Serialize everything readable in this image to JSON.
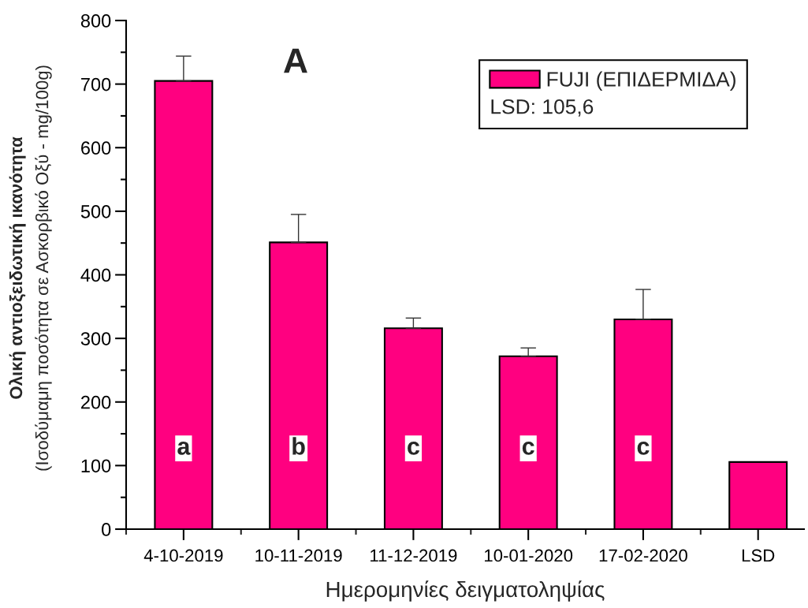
{
  "chart_data": {
    "type": "bar",
    "title": "A",
    "ylabel": "Ολική αντιοξειδωτική ικανότητα\n(Ισοδύμαμη ποσότητα σε Ασκορβικό Οξύ - mg/100g)",
    "xlabel": "Ημερομηνίες δειγματοληψίας",
    "categories": [
      "4-10-2019",
      "10-11-2019",
      "11-12-2019",
      "10-01-2020",
      "17-02-2020",
      "LSD"
    ],
    "series": [
      {
        "name": "FUJI (ΕΠΙΔΕΡΜΙΔΑ)",
        "color": "#ff0080",
        "values": [
          705,
          451,
          316,
          272,
          330,
          105.6
        ],
        "errors": [
          [
            705,
            744
          ],
          [
            451,
            495
          ],
          [
            316,
            332
          ],
          [
            272,
            285
          ],
          [
            330,
            377
          ],
          null
        ]
      }
    ],
    "ylim": [
      0,
      800
    ],
    "yticks": [
      0,
      {
        "value": 50,
        "label": null
      },
      100,
      {
        "value": 150,
        "label": null
      },
      200,
      {
        "value": 250,
        "label": null
      },
      300,
      {
        "value": 350,
        "label": null
      },
      400,
      {
        "value": 450,
        "label": null
      },
      500,
      {
        "value": 550,
        "label": null
      },
      600,
      {
        "value": 650,
        "label": null
      },
      700,
      {
        "value": 750,
        "label": null
      },
      800
    ],
    "legend": "top right",
    "annotations": [
      "LSD: 105,6",
      {
        "text": "a",
        "x": "4-10-2019",
        "y": 127
      },
      {
        "text": "b",
        "x": "10-11-2019",
        "y": 127
      },
      {
        "text": "c",
        "x": "11-12-2019",
        "y": 127
      },
      {
        "text": "c",
        "x": "10-01-2020",
        "y": 127
      },
      {
        "text": "c",
        "x": "17-02-2020",
        "y": 127
      }
    ]
  }
}
